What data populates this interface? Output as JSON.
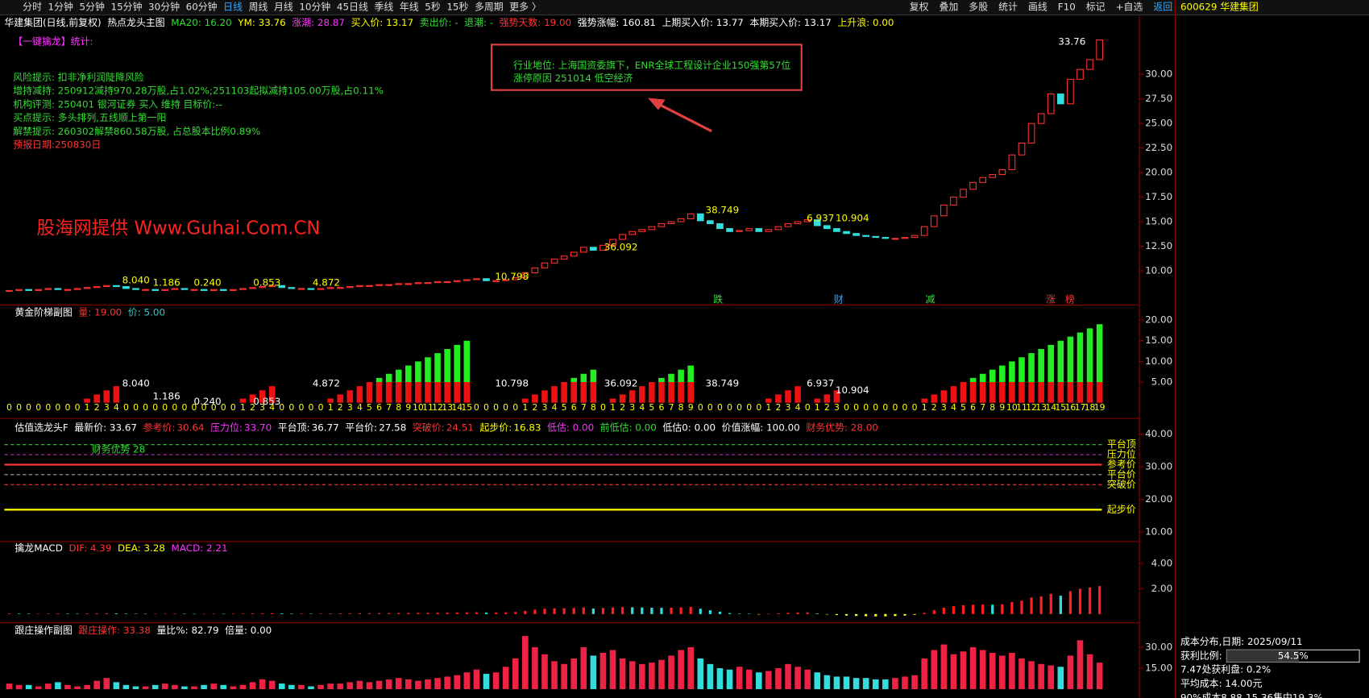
{
  "toolbar": {
    "items": [
      "分时",
      "1分钟",
      "5分钟",
      "15分钟",
      "30分钟",
      "60分钟",
      "日线",
      "周线",
      "月线",
      "10分钟",
      "45日线",
      "季线",
      "年线",
      "5秒",
      "15秒",
      "多周期",
      "更多 〉"
    ],
    "active": 6,
    "right": [
      "复权",
      "叠加",
      "多股",
      "统计",
      "画线",
      "F10",
      "标记",
      "+自选",
      "返回"
    ]
  },
  "stock": "600629 华建集团",
  "main_panel": {
    "header": [
      {
        "text": "华建集团(日线,前复权)",
        "color": "#ffffff"
      },
      {
        "text": "热点龙头主图",
        "color": "#ffffff"
      },
      {
        "text": "MA20: 16.20",
        "color": "#33dd33"
      },
      {
        "text": "YM: 33.76",
        "color": "#ffff00"
      },
      {
        "text": "涨潮: 28.87",
        "color": "#ff33ff"
      },
      {
        "text": "买入价: 13.17",
        "color": "#ffff00"
      },
      {
        "text": "卖出价: -",
        "color": "#33dd33"
      },
      {
        "text": "退潮: -",
        "color": "#33dd33"
      },
      {
        "text": "强势天数: 19.00",
        "color": "#ff3333"
      },
      {
        "text": "强势涨幅: 160.81",
        "color": "#ffffff"
      },
      {
        "text": "上期买入价: 13.77",
        "color": "#ffffff"
      },
      {
        "text": "本期买入价: 13.17",
        "color": "#ffffff"
      },
      {
        "text": "上升浪: 0.00",
        "color": "#ffff00"
      }
    ],
    "stats_title": "【一键擒龙】统计:",
    "notes": [
      {
        "text": "风险提示: 扣非净利润陡降风险",
        "color": "#33dd33"
      },
      {
        "text": "增持减持: 250912减持970.28万股,占1.02%;251103起拟减持105.00万股,占0.11%",
        "color": "#33dd33"
      },
      {
        "text": "机构评测: 250401 银河证券 买入 维持 目标价:--",
        "color": "#33dd33"
      },
      {
        "text": "买点提示: 多头排列,五线顺上第一阳",
        "color": "#33dd33"
      },
      {
        "text": "解禁提示: 260302解禁860.58万股, 占总股本比例0.89%",
        "color": "#33dd33"
      },
      {
        "text": "预报日期:250830日",
        "color": "#ff3333"
      }
    ],
    "box": [
      "行业地位: 上海国资委旗下，ENR全球工程设计企业150强第57位",
      "涨停原因 251014 低空经济"
    ],
    "watermark": "股海网提供 Www.Guhai.Com.CN",
    "annotations": [
      "33.76",
      "38.749",
      "36.092",
      "10.798",
      "6.937",
      "10.904",
      "8.040",
      "1.186",
      "0.240",
      "0.853",
      "4.872"
    ],
    "markers": [
      "跌",
      "财",
      "减",
      "涨",
      "榜"
    ],
    "yticks": [
      {
        "value": 30,
        "label": "30.00"
      },
      {
        "value": 27.5,
        "label": "27.50"
      },
      {
        "value": 25,
        "label": "25.00"
      },
      {
        "value": 22.5,
        "label": "22.50"
      },
      {
        "value": 20,
        "label": "20.00"
      },
      {
        "value": 17.5,
        "label": "17.50"
      },
      {
        "value": 15,
        "label": "15.00"
      },
      {
        "value": 12.5,
        "label": "12.50"
      },
      {
        "value": 10,
        "label": "10.00"
      }
    ],
    "close": [
      8.0,
      8.1,
      8.0,
      8.1,
      8.2,
      8.1,
      8.1,
      8.2,
      8.3,
      8.4,
      8.5,
      8.4,
      8.2,
      8.1,
      8.1,
      8.0,
      8.1,
      8.2,
      8.1,
      8.1,
      8.0,
      8.1,
      8.0,
      8.1,
      8.2,
      8.3,
      8.4,
      8.5,
      8.3,
      8.2,
      8.2,
      8.1,
      8.2,
      8.3,
      8.3,
      8.4,
      8.5,
      8.5,
      8.6,
      8.6,
      8.7,
      8.7,
      8.8,
      8.8,
      8.9,
      8.9,
      9.0,
      9.1,
      9.2,
      9.0,
      9.0,
      9.1,
      9.3,
      9.8,
      10.3,
      10.8,
      11.2,
      11.5,
      11.9,
      12.4,
      12.1,
      12.6,
      13.2,
      13.7,
      14.0,
      14.2,
      14.5,
      14.8,
      15.0,
      15.3,
      15.8,
      15.1,
      14.8,
      14.3,
      14.0,
      14.1,
      14.3,
      14.0,
      14.2,
      14.5,
      14.8,
      15.0,
      15.2,
      14.6,
      14.3,
      14.0,
      13.8,
      13.6,
      13.5,
      13.4,
      13.3,
      13.3,
      13.4,
      13.6,
      14.5,
      15.6,
      16.7,
      17.5,
      18.3,
      19.0,
      19.5,
      19.8,
      20.3,
      21.8,
      23.0,
      25.0,
      26.0,
      28.0,
      27.0,
      29.5,
      30.5,
      31.5,
      33.5
    ]
  },
  "ladder_panel": {
    "header": [
      {
        "text": "黄金阶梯副图",
        "color": "#ffffff"
      },
      {
        "text": "量: 19.00",
        "color": "#ff3333"
      },
      {
        "text": "价: 5.00",
        "color": "#33cccc"
      }
    ],
    "annotations": [
      "8.040",
      "1.186",
      "0.240",
      "0.853",
      "4.872",
      "10.798",
      "36.092",
      "38.749",
      "6.937",
      "10.904"
    ],
    "yticks": [
      {
        "value": 20,
        "label": "20.00"
      },
      {
        "value": 15,
        "label": "15.00"
      },
      {
        "value": 10,
        "label": "10.00"
      },
      {
        "value": 5,
        "label": "5.00"
      }
    ],
    "values": [
      0,
      0,
      0,
      0,
      0,
      0,
      0,
      0,
      1,
      2,
      3,
      4,
      0,
      0,
      0,
      0,
      0,
      0,
      0,
      0,
      0,
      0,
      0,
      0,
      1,
      2,
      3,
      4,
      0,
      0,
      0,
      0,
      0,
      1,
      2,
      3,
      4,
      5,
      6,
      7,
      8,
      9,
      10,
      11,
      12,
      13,
      14,
      15,
      0,
      0,
      0,
      0,
      0,
      1,
      2,
      3,
      4,
      5,
      6,
      7,
      8,
      0,
      1,
      2,
      3,
      4,
      5,
      6,
      7,
      8,
      9,
      0,
      0,
      0,
      0,
      0,
      0,
      0,
      1,
      2,
      3,
      4,
      0,
      1,
      2,
      3,
      0,
      0,
      0,
      0,
      0,
      0,
      0,
      0,
      1,
      2,
      3,
      4,
      5,
      6,
      7,
      8,
      9,
      10,
      11,
      12,
      13,
      14,
      15,
      16,
      17,
      18,
      19
    ]
  },
  "valuation_panel": {
    "header": [
      {
        "text": "估值选龙头F",
        "color": "#ffffff"
      },
      {
        "text": "最新价: 33.67",
        "color": "#ffffff"
      },
      {
        "name": "参考价:",
        "value": 30.64,
        "color": "#ff3333",
        "line_color": "#ff3333",
        "dash": false
      },
      {
        "name": "压力位:",
        "value": {
          "value": 33.7,
          "label": "33.70"
        },
        "color": "#ff33ff",
        "line_color": "#cc33cc",
        "dash": true
      },
      {
        "name": "平台顶:",
        "value": 36.77,
        "color": "#ffffff",
        "line_color": "#33cc33",
        "dash": true
      },
      {
        "name": "平台价:",
        "value": 27.58,
        "color": "#ffffff",
        "line_color": "#bbbbbb",
        "dash": true
      },
      {
        "name": "突破价:",
        "value": 24.51,
        "color": "#ff3333",
        "line_color": "#ff3333",
        "dash": true
      },
      {
        "name": "起步价:",
        "value": 16.83,
        "color": "#ffff00",
        "line_color": "#ffff00",
        "dash": false
      },
      {
        "text": "低估: 0.00",
        "color": "#ff33ff"
      },
      {
        "text": "前低估: 0.00",
        "color": "#33dd33"
      },
      {
        "text": "低估0: 0.00",
        "color": "#ffffff"
      },
      {
        "text": "价值涨幅: 100.00",
        "color": "#ffffff"
      },
      {
        "text": "财务优势: 28.00",
        "color": "#ff3333"
      }
    ],
    "level_labels": [
      "参考价",
      "压力位",
      "平台顶",
      "平台价",
      "突破价",
      "起步价"
    ],
    "note": "财务优势 28",
    "yticks": [
      {
        "value": 40,
        "label": "40.00"
      },
      {
        "value": 30,
        "label": "30.00"
      },
      {
        "value": 20,
        "label": "20.00"
      },
      {
        "value": 10,
        "label": "10.00"
      }
    ]
  },
  "macd_panel": {
    "header": [
      {
        "text": "擒龙MACD",
        "color": "#ffffff"
      },
      {
        "text": "DIF: 4.39",
        "color": "#ff3333"
      },
      {
        "text": "DEA: 3.28",
        "color": "#ffff00"
      },
      {
        "text": "MACD: 2.21",
        "color": "#ff33ff"
      }
    ],
    "yticks": [
      {
        "value": 4,
        "label": "4.00"
      },
      {
        "value": 2,
        "label": "2.00"
      }
    ],
    "values": [
      0.05,
      0.04,
      0.03,
      0.03,
      0.04,
      0.05,
      0.04,
      0.03,
      0.05,
      0.06,
      0.07,
      0.06,
      0.04,
      0.03,
      0.02,
      0.02,
      0.03,
      0.04,
      0.03,
      0.02,
      0.02,
      0.03,
      0.02,
      0.03,
      0.04,
      0.05,
      0.06,
      0.07,
      0.05,
      0.04,
      0.04,
      0.03,
      0.04,
      0.05,
      0.05,
      0.06,
      0.07,
      0.07,
      0.08,
      0.08,
      0.09,
      0.09,
      0.1,
      0.1,
      0.11,
      0.11,
      0.12,
      0.13,
      0.14,
      0.12,
      0.12,
      0.13,
      0.16,
      0.25,
      0.35,
      0.42,
      0.45,
      0.46,
      0.48,
      0.52,
      0.44,
      0.48,
      0.52,
      0.55,
      0.54,
      0.52,
      0.5,
      0.49,
      0.5,
      0.52,
      0.56,
      0.42,
      0.3,
      0.18,
      0.08,
      0.04,
      0.03,
      -0.02,
      0.02,
      0.06,
      0.1,
      0.12,
      0.13,
      0.05,
      -0.02,
      -0.08,
      -0.12,
      -0.15,
      -0.17,
      -0.18,
      -0.18,
      -0.16,
      -0.12,
      -0.06,
      0.1,
      0.3,
      0.5,
      0.62,
      0.7,
      0.74,
      0.75,
      0.74,
      0.78,
      0.95,
      1.05,
      1.3,
      1.4,
      1.6,
      1.45,
      1.8,
      2.0,
      2.1,
      2.21
    ]
  },
  "volume_panel": {
    "header": [
      {
        "text": "跟庄操作副图",
        "color": "#ffffff"
      },
      {
        "text": "跟庄操作: 33.38",
        "color": "#ff3333"
      },
      {
        "text": "量比%: 82.79",
        "color": "#ffffff"
      },
      {
        "text": "倍量: 0.00",
        "color": "#ffffff"
      }
    ],
    "yticks": [
      {
        "value": 30,
        "label": "30.00"
      },
      {
        "value": 15,
        "label": "15.00"
      }
    ],
    "values": [
      4,
      3,
      3,
      2,
      4,
      5,
      3,
      2,
      3,
      6,
      8,
      5,
      3,
      2,
      2,
      3,
      4,
      3,
      2,
      2,
      3,
      4,
      3,
      2,
      3,
      5,
      7,
      6,
      4,
      3,
      3,
      2,
      3,
      4,
      4,
      5,
      6,
      5,
      6,
      7,
      8,
      7,
      6,
      7,
      8,
      9,
      10,
      12,
      14,
      11,
      12,
      16,
      22,
      38,
      30,
      25,
      20,
      18,
      22,
      30,
      24,
      26,
      28,
      22,
      20,
      18,
      19,
      21,
      24,
      28,
      30,
      22,
      18,
      15,
      14,
      16,
      14,
      12,
      13,
      15,
      18,
      16,
      14,
      12,
      10,
      9,
      9,
      8,
      8,
      7,
      7,
      8,
      9,
      10,
      22,
      28,
      32,
      25,
      27,
      30,
      28,
      26,
      24,
      26,
      22,
      20,
      18,
      17,
      16,
      24,
      35,
      25,
      19
    ]
  },
  "cost_panel": {
    "title": "成本分布,日期: 2025/09/11",
    "ratio_label": "获利比例:",
    "ratio": {
      "value": 54.5,
      "label": "54.5%"
    },
    "lines": [
      "7.47处获利盘: 0.2%",
      "平均成本: 14.00元",
      "90%成本8.88-15.36集中19.3%"
    ]
  }
}
